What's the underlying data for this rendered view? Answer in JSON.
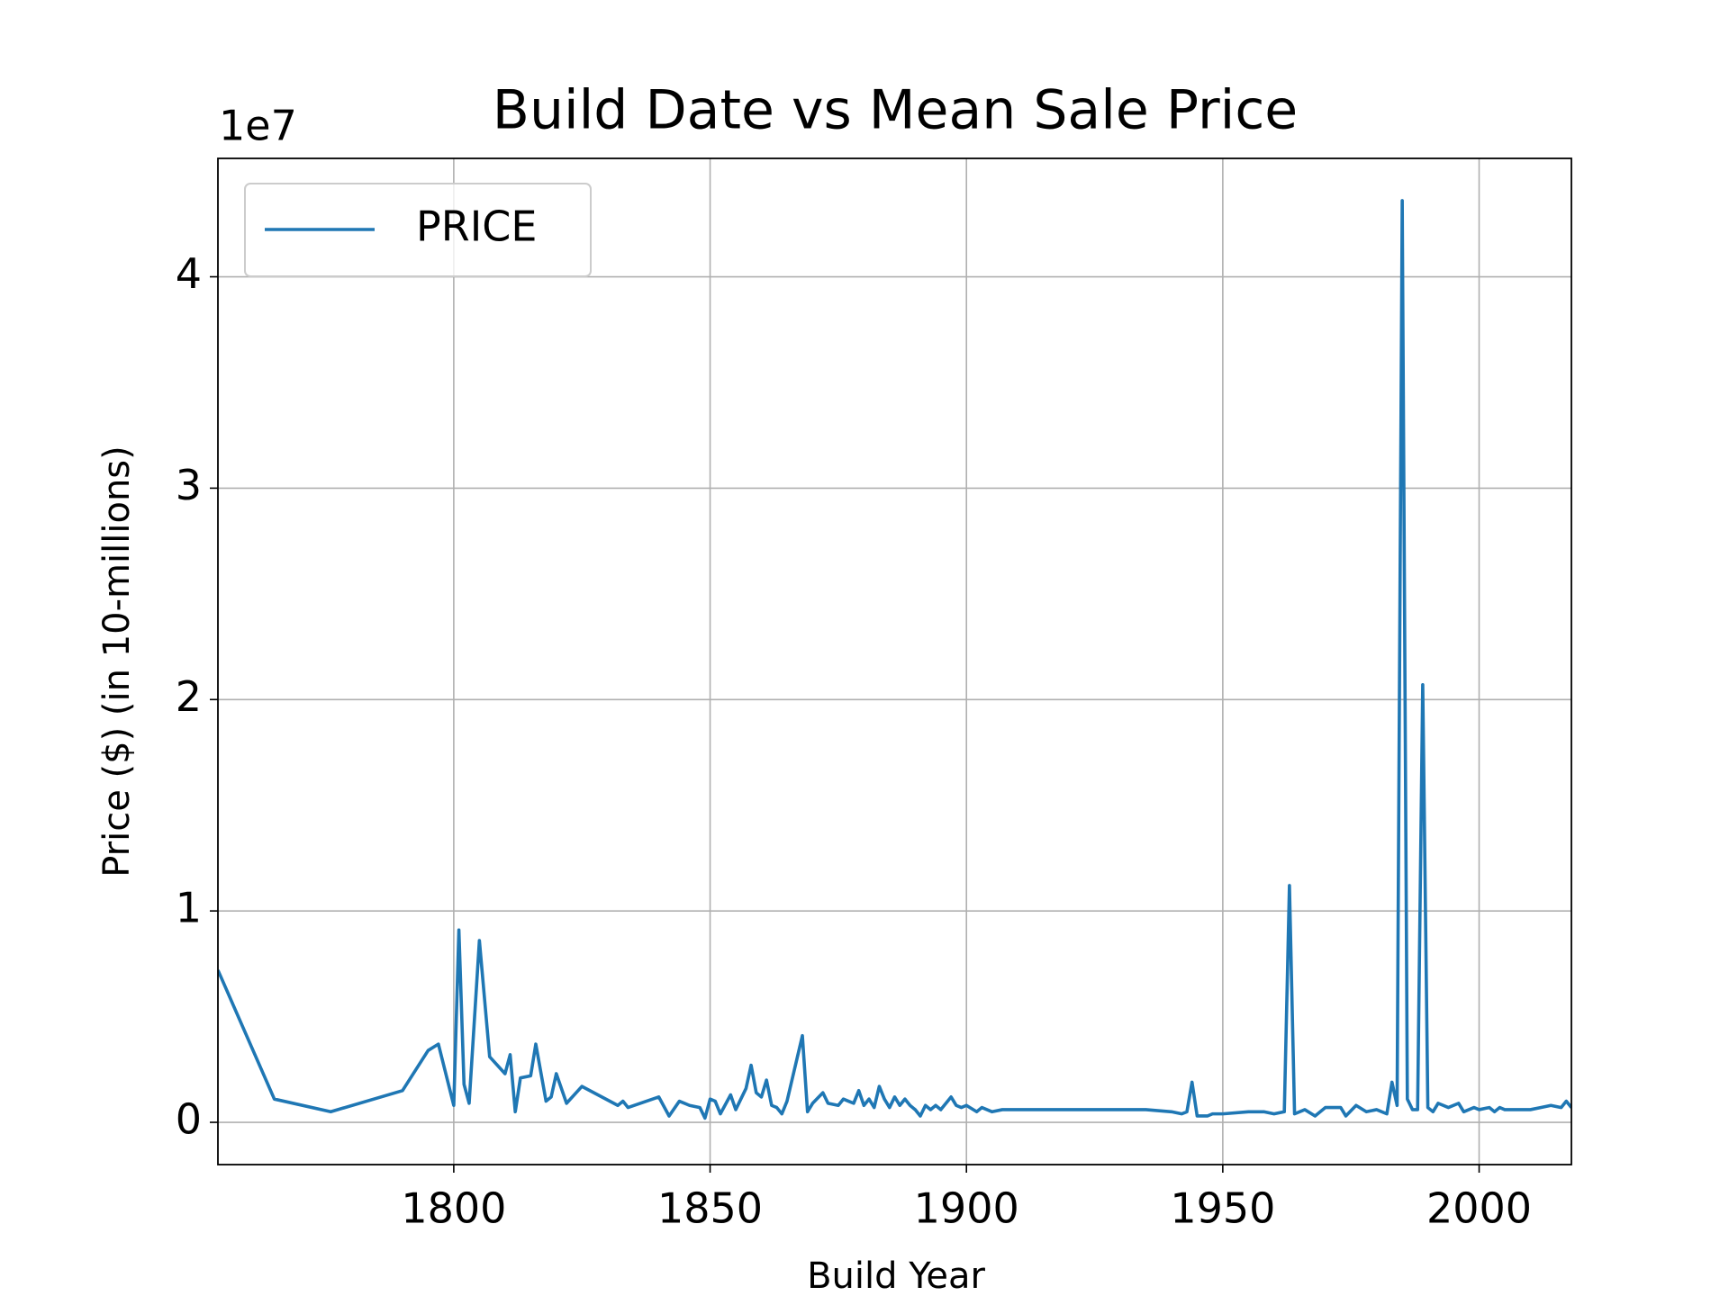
{
  "chart_data": {
    "type": "line",
    "title": "Build Date vs Mean Sale Price",
    "x_label": "Build Year",
    "y_label": "Price ($) (in 10-millions)",
    "y_offset_label": "1e7",
    "x": [
      1754,
      1765,
      1776,
      1790,
      1795,
      1797,
      1800,
      1801,
      1802,
      1803,
      1805,
      1807,
      1810,
      1811,
      1812,
      1813,
      1815,
      1816,
      1818,
      1819,
      1820,
      1822,
      1825,
      1832,
      1833,
      1834,
      1840,
      1842,
      1844,
      1846,
      1848,
      1849,
      1850,
      1851,
      1852,
      1854,
      1855,
      1857,
      1858,
      1859,
      1860,
      1861,
      1862,
      1863,
      1864,
      1865,
      1868,
      1869,
      1870,
      1872,
      1873,
      1875,
      1876,
      1877,
      1878,
      1879,
      1880,
      1881,
      1882,
      1883,
      1884,
      1885,
      1886,
      1887,
      1888,
      1889,
      1890,
      1891,
      1892,
      1893,
      1894,
      1895,
      1897,
      1898,
      1899,
      1900,
      1902,
      1903,
      1905,
      1907,
      1910,
      1913,
      1915,
      1918,
      1920,
      1925,
      1930,
      1935,
      1940,
      1942,
      1943,
      1944,
      1945,
      1947,
      1948,
      1950,
      1955,
      1958,
      1960,
      1962,
      1963,
      1964,
      1966,
      1968,
      1970,
      1973,
      1974,
      1976,
      1978,
      1980,
      1982,
      1983,
      1984,
      1985,
      1986,
      1987,
      1988,
      1989,
      1990,
      1991,
      1992,
      1994,
      1996,
      1997,
      1999,
      2000,
      2002,
      2003,
      2004,
      2005,
      2008,
      2010,
      2012,
      2014,
      2016,
      2017,
      2018
    ],
    "series": [
      {
        "name": "PRICE",
        "color": "#1f77b4",
        "values": [
          0.72,
          0.11,
          0.05,
          0.15,
          0.34,
          0.37,
          0.08,
          0.91,
          0.18,
          0.09,
          0.86,
          0.31,
          0.23,
          0.32,
          0.05,
          0.21,
          0.22,
          0.37,
          0.1,
          0.12,
          0.23,
          0.09,
          0.17,
          0.08,
          0.1,
          0.07,
          0.12,
          0.03,
          0.1,
          0.08,
          0.07,
          0.02,
          0.11,
          0.1,
          0.04,
          0.13,
          0.06,
          0.16,
          0.27,
          0.14,
          0.12,
          0.2,
          0.08,
          0.07,
          0.04,
          0.1,
          0.41,
          0.05,
          0.09,
          0.14,
          0.09,
          0.08,
          0.11,
          0.1,
          0.09,
          0.15,
          0.08,
          0.11,
          0.07,
          0.17,
          0.11,
          0.07,
          0.12,
          0.08,
          0.11,
          0.08,
          0.06,
          0.03,
          0.08,
          0.06,
          0.08,
          0.06,
          0.12,
          0.08,
          0.07,
          0.08,
          0.05,
          0.07,
          0.05,
          0.06,
          0.06,
          0.06,
          0.06,
          0.06,
          0.06,
          0.06,
          0.06,
          0.06,
          0.05,
          0.04,
          0.05,
          0.19,
          0.03,
          0.03,
          0.04,
          0.04,
          0.05,
          0.05,
          0.04,
          0.05,
          1.12,
          0.04,
          0.06,
          0.03,
          0.07,
          0.07,
          0.03,
          0.08,
          0.05,
          0.06,
          0.04,
          0.19,
          0.08,
          4.36,
          0.11,
          0.06,
          0.06,
          2.07,
          0.07,
          0.05,
          0.09,
          0.07,
          0.09,
          0.05,
          0.07,
          0.06,
          0.07,
          0.05,
          0.07,
          0.06,
          0.06,
          0.06,
          0.07,
          0.08,
          0.07,
          0.1,
          0.07
        ]
      }
    ],
    "xlim": [
      1754,
      2018
    ],
    "ylim": [
      -0.2,
      4.56
    ],
    "xticks": [
      1800,
      1850,
      1900,
      1950,
      2000
    ],
    "yticks": [
      0,
      1,
      2,
      3,
      4
    ],
    "grid": true,
    "legend": "upper left"
  }
}
